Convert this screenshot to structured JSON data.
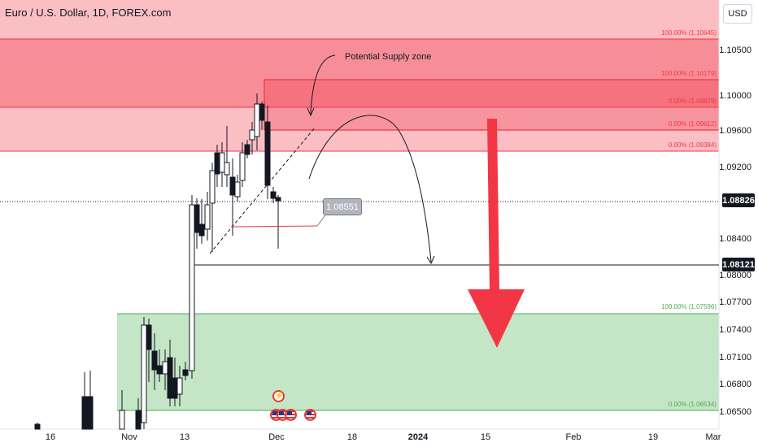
{
  "header": {
    "symbol_title": "Euro / U.S. Dollar, 1D, FOREX.com",
    "currency_button": "USD"
  },
  "price_axis": {
    "labels": [
      "1.10500",
      "1.10000",
      "1.09600",
      "1.09200",
      "1.08400",
      "1.08000",
      "1.07700",
      "1.07400",
      "1.07100",
      "1.06800",
      "1.06500"
    ],
    "current_price": "1.08826",
    "line_price": "1.08121"
  },
  "time_axis": {
    "labels": [
      "16",
      "Nov",
      "13",
      "Dec",
      "18",
      "2024",
      "15",
      "Feb",
      "19",
      "Mar"
    ]
  },
  "fib_labels": {
    "upper_a_100": "100.00% (1.10645)",
    "upper_b_100": "100.00% (1.10179)",
    "upper_a_0": "0.00% (1.09879)",
    "upper_b_0": "0.00% (1.09612)",
    "upper_c_0": "0.00% (1.09384)",
    "lower_100": "100.00% (1.07596)",
    "lower_0": "0.00% (1.06534)"
  },
  "annotations": {
    "supply_label": "Potential Supply zone",
    "tooltip_price": "1.08551"
  },
  "colors": {
    "up": "#ffffff",
    "down": "#131722",
    "supply_zone": "#f23645",
    "demand_zone": "#4caf50",
    "arrow": "#f23645"
  },
  "event_icons": [
    "lightning-icon",
    "us-flag-icon",
    "us-flag-icon",
    "us-flag-icon",
    "us-flag-icon"
  ]
}
